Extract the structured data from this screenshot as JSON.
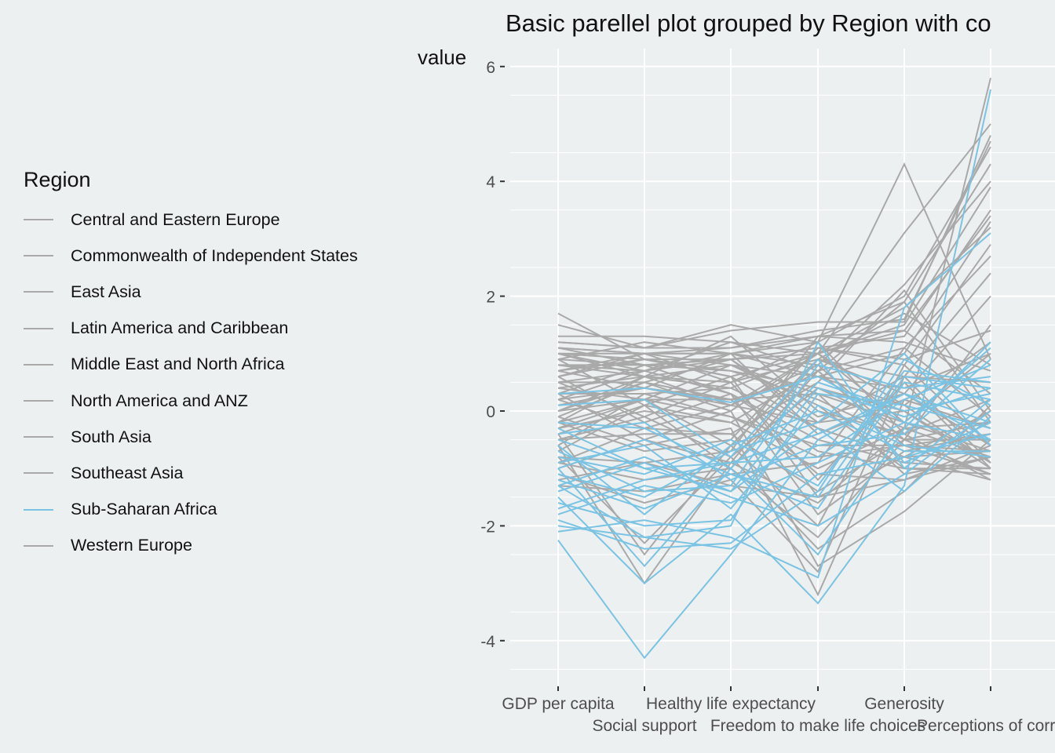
{
  "chart_data": {
    "type": "line",
    "title": "Basic parellel plot grouped by Region with co",
    "ylabel": "value",
    "xlabel": "",
    "x": [
      "GDP per capita",
      "Social support",
      "Healthy life expectancy",
      "Freedom to make life choices",
      "Generosity",
      "Perceptions of corru"
    ],
    "ylim": [
      -4.9,
      6.3
    ],
    "yticks": [
      -4,
      -2,
      0,
      2,
      4,
      6
    ],
    "grid": true,
    "legend_position": "left",
    "legend_title": "Region",
    "highlight_series": "Sub-Saharan Africa",
    "colors": {
      "highlight": "#7AC3E3",
      "other": "#A9A9A9",
      "background": "#EDF0F1",
      "grid": "#FFFFFF"
    },
    "series": [
      {
        "name": "Sub-Saharan Africa",
        "values": [
          -2.25,
          -4.3,
          -2.5,
          -0.5,
          0.3,
          -0.2
        ]
      },
      {
        "name": "Sub-Saharan Africa",
        "values": [
          -1.5,
          -3.0,
          -1.8,
          -3.35,
          -1.3,
          5.6
        ]
      },
      {
        "name": "Sub-Saharan Africa",
        "values": [
          -2.1,
          -1.9,
          -2.2,
          -2.9,
          1.8,
          3.1
        ]
      },
      {
        "name": "Sub-Saharan Africa",
        "values": [
          -1.0,
          -2.7,
          -1.0,
          -2.5,
          -0.3,
          1.2
        ]
      },
      {
        "name": "Sub-Saharan Africa",
        "values": [
          0.3,
          0.4,
          0.15,
          0.6,
          -0.2,
          -0.5
        ]
      },
      {
        "name": "Sub-Saharan Africa",
        "values": [
          -1.3,
          -2.2,
          -2.0,
          1.2,
          -1.0,
          0.2
        ]
      },
      {
        "name": "Sub-Saharan Africa",
        "values": [
          -0.5,
          -1.0,
          -1.4,
          -0.3,
          -1.4,
          -0.1
        ]
      },
      {
        "name": "Sub-Saharan Africa",
        "values": [
          -1.7,
          -1.2,
          -0.9,
          -0.8,
          0.2,
          0.8
        ]
      },
      {
        "name": "Sub-Saharan Africa",
        "values": [
          -0.9,
          -0.6,
          -1.7,
          0.1,
          -0.6,
          -0.8
        ]
      },
      {
        "name": "Sub-Saharan Africa",
        "values": [
          -1.2,
          -1.7,
          -1.1,
          -1.5,
          0.6,
          0.4
        ]
      },
      {
        "name": "Sub-Saharan Africa",
        "values": [
          -0.2,
          -0.3,
          -1.0,
          0.5,
          0.0,
          0.3
        ]
      },
      {
        "name": "Sub-Saharan Africa",
        "values": [
          -1.9,
          -2.4,
          -2.3,
          -1.1,
          -0.8,
          -0.4
        ]
      },
      {
        "name": "Sub-Saharan Africa",
        "values": [
          -0.7,
          -1.4,
          -1.3,
          0.8,
          0.4,
          0.6
        ]
      },
      {
        "name": "Sub-Saharan Africa",
        "values": [
          -1.4,
          -0.9,
          -1.5,
          -2.0,
          -1.1,
          0.0
        ]
      },
      {
        "name": "Sub-Saharan Africa",
        "values": [
          -1.1,
          -1.5,
          -0.7,
          -0.2,
          1.0,
          -0.6
        ]
      },
      {
        "name": "Sub-Saharan Africa",
        "values": [
          -0.4,
          -0.2,
          -1.2,
          -0.6,
          -0.4,
          0.9
        ]
      },
      {
        "name": "Sub-Saharan Africa",
        "values": [
          -1.6,
          -2.0,
          -1.9,
          0.3,
          0.1,
          -0.3
        ]
      },
      {
        "name": "Sub-Saharan Africa",
        "values": [
          -0.8,
          -1.1,
          -0.5,
          -1.3,
          0.7,
          0.5
        ]
      },
      {
        "name": "Sub-Saharan Africa",
        "values": [
          0.1,
          0.2,
          -0.8,
          0.9,
          -0.9,
          -0.2
        ]
      },
      {
        "name": "Sub-Saharan Africa",
        "values": [
          -1.8,
          -1.3,
          -1.6,
          -0.9,
          -0.2,
          1.1
        ]
      },
      {
        "name": "Sub-Saharan Africa",
        "values": [
          -1.0,
          -0.5,
          -1.1,
          -1.7,
          0.5,
          0.2
        ]
      },
      {
        "name": "Sub-Saharan Africa",
        "values": [
          -0.6,
          -1.8,
          -0.6,
          0.0,
          -0.7,
          -0.7
        ]
      },
      {
        "name": "Sub-Saharan Africa",
        "values": [
          -2.0,
          -2.2,
          -2.4,
          -1.4,
          0.9,
          0.1
        ]
      },
      {
        "name": "Sub-Saharan Africa",
        "values": [
          -1.3,
          -0.8,
          -1.4,
          0.4,
          -0.1,
          0.4
        ]
      },
      {
        "name": "Sub-Saharan Africa",
        "values": [
          -0.3,
          -1.0,
          -0.9,
          -0.4,
          0.3,
          -0.5
        ]
      },
      {
        "name": "Central and Eastern Europe",
        "values": [
          1.7,
          0.9,
          0.7,
          0.4,
          -0.3,
          5.8
        ]
      },
      {
        "name": "Commonwealth of Independent States",
        "values": [
          1.5,
          1.1,
          1.5,
          1.2,
          4.3,
          0.9
        ]
      },
      {
        "name": "East Asia",
        "values": [
          1.3,
          1.3,
          1.2,
          1.0,
          3.1,
          5.0
        ]
      },
      {
        "name": "Latin America and Caribbean",
        "values": [
          1.2,
          1.1,
          1.4,
          1.55,
          1.55,
          4.8
        ]
      },
      {
        "name": "Middle East and North Africa",
        "values": [
          1.0,
          1.0,
          1.1,
          1.3,
          1.9,
          4.3
        ]
      },
      {
        "name": "North America and ANZ",
        "values": [
          0.9,
          1.2,
          1.0,
          0.8,
          2.2,
          4.0
        ]
      },
      {
        "name": "South Asia",
        "values": [
          1.1,
          0.8,
          0.9,
          1.1,
          1.3,
          3.5
        ]
      },
      {
        "name": "Southeast Asia",
        "values": [
          0.8,
          0.6,
          0.8,
          0.6,
          1.0,
          3.3
        ]
      },
      {
        "name": "Western Europe",
        "values": [
          0.7,
          0.9,
          0.6,
          1.0,
          1.8,
          3.2
        ]
      },
      {
        "name": "Western Europe",
        "values": [
          1.0,
          0.7,
          1.2,
          0.7,
          1.1,
          2.7
        ]
      },
      {
        "name": "Western Europe",
        "values": [
          0.6,
          1.0,
          0.5,
          0.9,
          0.6,
          2.4
        ]
      },
      {
        "name": "Central and Eastern Europe",
        "values": [
          0.5,
          0.5,
          0.9,
          -0.1,
          0.3,
          2.0
        ]
      },
      {
        "name": "Central and Eastern Europe",
        "values": [
          0.8,
          0.8,
          0.7,
          0.2,
          -0.5,
          1.5
        ]
      },
      {
        "name": "Central and Eastern Europe",
        "values": [
          0.4,
          0.6,
          0.4,
          -0.3,
          -0.8,
          -1.2
        ]
      },
      {
        "name": "Commonwealth of Independent States",
        "values": [
          0.2,
          0.7,
          0.3,
          -0.5,
          -0.9,
          -1.0
        ]
      },
      {
        "name": "Commonwealth of Independent States",
        "values": [
          0.0,
          0.5,
          0.2,
          0.3,
          -1.1,
          -0.8
        ]
      },
      {
        "name": "Latin America and Caribbean",
        "values": [
          0.3,
          0.3,
          0.4,
          1.0,
          -0.2,
          -0.7
        ]
      },
      {
        "name": "Latin America and Caribbean",
        "values": [
          0.1,
          0.4,
          0.1,
          0.8,
          -0.5,
          -1.1
        ]
      },
      {
        "name": "Latin America and Caribbean",
        "values": [
          -0.2,
          0.2,
          0.2,
          0.6,
          0.1,
          -0.9
        ]
      },
      {
        "name": "Latin America and Caribbean",
        "values": [
          0.0,
          0.6,
          0.5,
          1.2,
          -0.4,
          -1.2
        ]
      },
      {
        "name": "Middle East and North Africa",
        "values": [
          0.9,
          0.1,
          0.6,
          -1.5,
          -1.2,
          -0.6
        ]
      },
      {
        "name": "Middle East and North Africa",
        "values": [
          0.6,
          -0.2,
          0.3,
          -1.8,
          -0.7,
          -0.4
        ]
      },
      {
        "name": "Middle East and North Africa",
        "values": [
          0.3,
          -0.5,
          0.0,
          -2.7,
          -1.75,
          -0.5
        ]
      },
      {
        "name": "Middle East and North Africa",
        "values": [
          -0.1,
          -0.6,
          -0.3,
          -3.2,
          0.2,
          -0.3
        ]
      },
      {
        "name": "Middle East and North Africa",
        "values": [
          0.5,
          -0.1,
          0.5,
          -1.2,
          0.5,
          -1.0
        ]
      },
      {
        "name": "South Asia",
        "values": [
          -0.8,
          -2.3,
          -0.8,
          -2.4,
          -1.4,
          0.1
        ]
      },
      {
        "name": "South Asia",
        "values": [
          -0.6,
          -3.0,
          -0.9,
          -1.6,
          -0.3,
          -0.2
        ]
      },
      {
        "name": "South Asia",
        "values": [
          -0.4,
          -2.5,
          -0.6,
          -2.0,
          0.8,
          -0.6
        ]
      },
      {
        "name": "South Asia",
        "values": [
          -1.1,
          -1.6,
          -1.2,
          -2.8,
          0.6,
          -0.9
        ]
      },
      {
        "name": "Southeast Asia",
        "values": [
          -0.3,
          0.0,
          -0.2,
          0.7,
          1.9,
          -0.2
        ]
      },
      {
        "name": "Southeast Asia",
        "values": [
          0.2,
          -0.3,
          0.1,
          1.0,
          1.4,
          0.3
        ]
      },
      {
        "name": "Southeast Asia",
        "values": [
          -0.5,
          -0.4,
          -0.4,
          0.5,
          2.1,
          0.0
        ]
      },
      {
        "name": "Southeast Asia",
        "values": [
          -0.2,
          -0.7,
          -0.5,
          1.1,
          0.9,
          1.4
        ]
      },
      {
        "name": "Commonwealth of Independent States",
        "values": [
          -0.6,
          0.3,
          -0.1,
          -0.8,
          -0.6,
          -1.1
        ]
      },
      {
        "name": "Commonwealth of Independent States",
        "values": [
          -0.4,
          0.1,
          -0.2,
          -1.0,
          -0.3,
          -0.8
        ]
      },
      {
        "name": "Commonwealth of Independent States",
        "values": [
          -0.9,
          -0.3,
          -0.4,
          -1.4,
          -0.5,
          -0.5
        ]
      },
      {
        "name": "East Asia",
        "values": [
          0.7,
          0.4,
          1.0,
          -0.4,
          0.2,
          -0.3
        ]
      },
      {
        "name": "East Asia",
        "values": [
          1.0,
          0.6,
          1.3,
          0.0,
          -0.4,
          0.2
        ]
      },
      {
        "name": "East Asia",
        "values": [
          0.4,
          0.2,
          0.8,
          0.3,
          -0.2,
          1.0
        ]
      },
      {
        "name": "East Asia",
        "values": [
          0.5,
          0.7,
          0.9,
          -0.2,
          0.6,
          0.5
        ]
      },
      {
        "name": "Central and Eastern Europe",
        "values": [
          0.3,
          0.8,
          0.3,
          -0.7,
          -1.0,
          -1.0
        ]
      },
      {
        "name": "Central and Eastern Europe",
        "values": [
          0.6,
          0.9,
          0.6,
          -0.3,
          -0.8,
          -0.7
        ]
      },
      {
        "name": "Central and Eastern Europe",
        "values": [
          0.2,
          0.4,
          0.2,
          -1.1,
          -1.2,
          -0.8
        ]
      },
      {
        "name": "Central and Eastern Europe",
        "values": [
          0.0,
          0.2,
          -0.1,
          -0.6,
          -0.6,
          -0.4
        ]
      },
      {
        "name": "Latin America and Caribbean",
        "values": [
          -0.3,
          0.2,
          -0.6,
          0.9,
          0.3,
          -0.6
        ]
      },
      {
        "name": "Latin America and Caribbean",
        "values": [
          -0.5,
          -0.1,
          -0.8,
          0.4,
          0.0,
          -1.0
        ]
      },
      {
        "name": "Latin America and Caribbean",
        "values": [
          -0.7,
          0.1,
          -1.0,
          0.7,
          -0.6,
          -0.7
        ]
      },
      {
        "name": "Middle East and North Africa",
        "values": [
          -0.9,
          -1.2,
          -1.0,
          -2.2,
          -0.5,
          -0.2
        ]
      },
      {
        "name": "Middle East and North Africa",
        "values": [
          -1.2,
          -0.9,
          -1.3,
          -1.5,
          -0.8,
          0.0
        ]
      },
      {
        "name": "Western Europe",
        "values": [
          1.1,
          1.0,
          1.0,
          1.3,
          1.4,
          3.4
        ]
      },
      {
        "name": "Western Europe",
        "values": [
          0.9,
          0.8,
          0.9,
          1.1,
          0.8,
          2.9
        ]
      },
      {
        "name": "Western Europe",
        "values": [
          1.2,
          1.1,
          1.1,
          1.4,
          1.6,
          4.7
        ]
      },
      {
        "name": "Western Europe",
        "values": [
          0.8,
          0.7,
          1.0,
          0.6,
          0.4,
          1.0
        ]
      },
      {
        "name": "North America and ANZ",
        "values": [
          1.1,
          1.0,
          1.0,
          1.2,
          2.0,
          4.6
        ]
      },
      {
        "name": "North America and ANZ",
        "values": [
          1.0,
          0.9,
          0.9,
          1.0,
          1.5,
          3.9
        ]
      },
      {
        "name": "Southeast Asia",
        "values": [
          -0.8,
          -0.9,
          -0.7,
          1.3,
          1.2,
          0.7
        ]
      },
      {
        "name": "Southeast Asia",
        "values": [
          -1.0,
          -0.5,
          -0.9,
          0.9,
          1.7,
          0.8
        ]
      },
      {
        "name": "South Asia",
        "values": [
          -1.3,
          -1.4,
          -1.1,
          -0.9,
          1.1,
          -0.1
        ]
      },
      {
        "name": "Latin America and Caribbean",
        "values": [
          -0.1,
          0.5,
          0.0,
          1.0,
          0.1,
          1.2
        ]
      },
      {
        "name": "Commonwealth of Independent States",
        "values": [
          -0.2,
          0.6,
          0.1,
          -0.2,
          0.0,
          -0.9
        ]
      },
      {
        "name": "Central and Eastern Europe",
        "values": [
          0.7,
          1.0,
          0.8,
          0.1,
          -1.0,
          -1.1
        ]
      }
    ]
  },
  "legend": {
    "title": "Region",
    "items": [
      {
        "label": "Central and Eastern Europe",
        "color": "#A9A9A9"
      },
      {
        "label": "Commonwealth of Independent States",
        "color": "#A9A9A9"
      },
      {
        "label": "East Asia",
        "color": "#A9A9A9"
      },
      {
        "label": "Latin America and Caribbean",
        "color": "#A9A9A9"
      },
      {
        "label": "Middle East and North Africa",
        "color": "#A9A9A9"
      },
      {
        "label": "North America and ANZ",
        "color": "#A9A9A9"
      },
      {
        "label": "South Asia",
        "color": "#A9A9A9"
      },
      {
        "label": "Southeast Asia",
        "color": "#A9A9A9"
      },
      {
        "label": "Sub-Saharan Africa",
        "color": "#7AC3E3"
      },
      {
        "label": "Western Europe",
        "color": "#A9A9A9"
      }
    ]
  }
}
